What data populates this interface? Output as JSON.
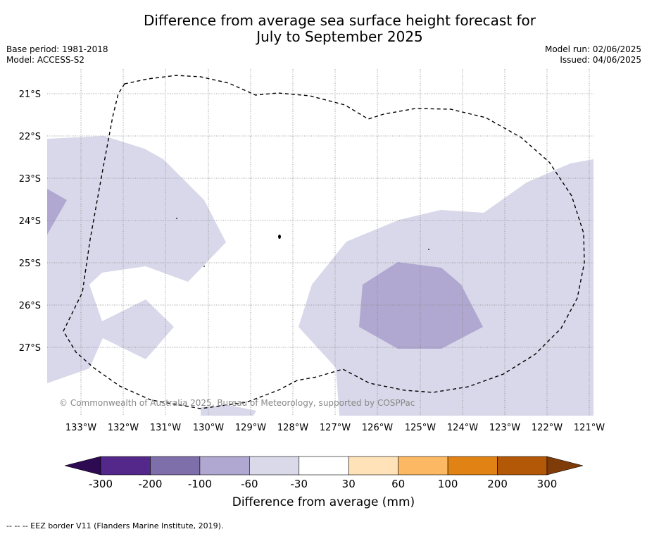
{
  "title_line1": "Difference from average sea surface height forecast for",
  "title_line2": "July to September 2025",
  "base_period": "Base period: 1981-2018",
  "model": "Model: ACCESS-S2",
  "model_run": "Model run: 02/06/2025",
  "issued": "Issued: 04/06/2025",
  "copyright": "© Commonwealth of Australia 2025, Bureau of Meteorology, supported by COSPPac",
  "lat_labels": [
    "21°S",
    "22°S",
    "23°S",
    "24°S",
    "25°S",
    "26°S",
    "27°S"
  ],
  "lon_labels": [
    "133°W",
    "132°W",
    "131°W",
    "130°W",
    "129°W",
    "128°W",
    "127°W",
    "126°W",
    "125°W",
    "124°W",
    "123°W",
    "122°W",
    "121°W"
  ],
  "colorbar": {
    "title": "Difference from average (mm)",
    "tick_labels": [
      "-300",
      "-200",
      "-100",
      "-60",
      "-30",
      "30",
      "60",
      "100",
      "200",
      "300"
    ],
    "colors": [
      "#2d0a52",
      "#54288a",
      "#7e6fab",
      "#b0a8d0",
      "#d9d9ea",
      "#ffffff",
      "#ffe2b8",
      "#fdb863",
      "#e08214",
      "#b35806",
      "#7f3b08"
    ]
  },
  "footnote": "-- -- -- EEZ border V11 (Flanders Marine Institute, 2019).",
  "colors": {
    "light_purple": "#d8d8ea",
    "medium_purple": "#b0a8d0",
    "grid": "#888888"
  }
}
